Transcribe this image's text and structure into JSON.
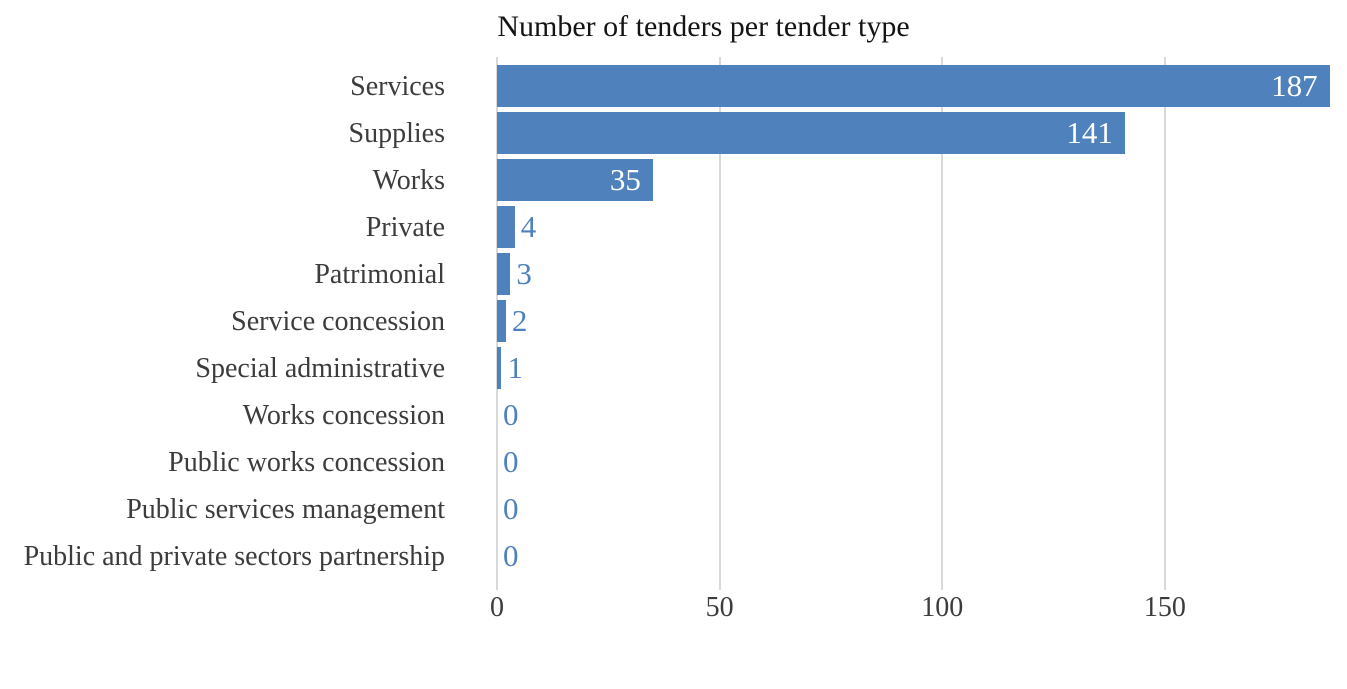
{
  "chart_data": {
    "type": "bar",
    "orientation": "horizontal",
    "title": "Number of tenders per tender type",
    "categories": [
      "Services",
      "Supplies",
      "Works",
      "Private",
      "Patrimonial",
      "Service concession",
      "Special administrative",
      "Works concession",
      "Public works concession",
      "Public services management",
      "Public and private sectors partnership"
    ],
    "values": [
      187,
      141,
      35,
      4,
      3,
      2,
      1,
      0,
      0,
      0,
      0
    ],
    "xlabel": "",
    "ylabel": "",
    "xlim": [
      0,
      190
    ],
    "xticks": [
      0,
      50,
      100,
      150
    ],
    "grid": "vertical-gridlines-only",
    "legend": "none",
    "value_labels": "at-bar-end",
    "colors": {
      "bar": "#4F81BD",
      "value_label_inside": "#FFFFFF",
      "value_label_outside": "#4F81BD",
      "axis_text": "#3C3C3C",
      "title_text": "#141414",
      "gridline": "#D9D9D9",
      "background": "#FFFFFF"
    }
  }
}
